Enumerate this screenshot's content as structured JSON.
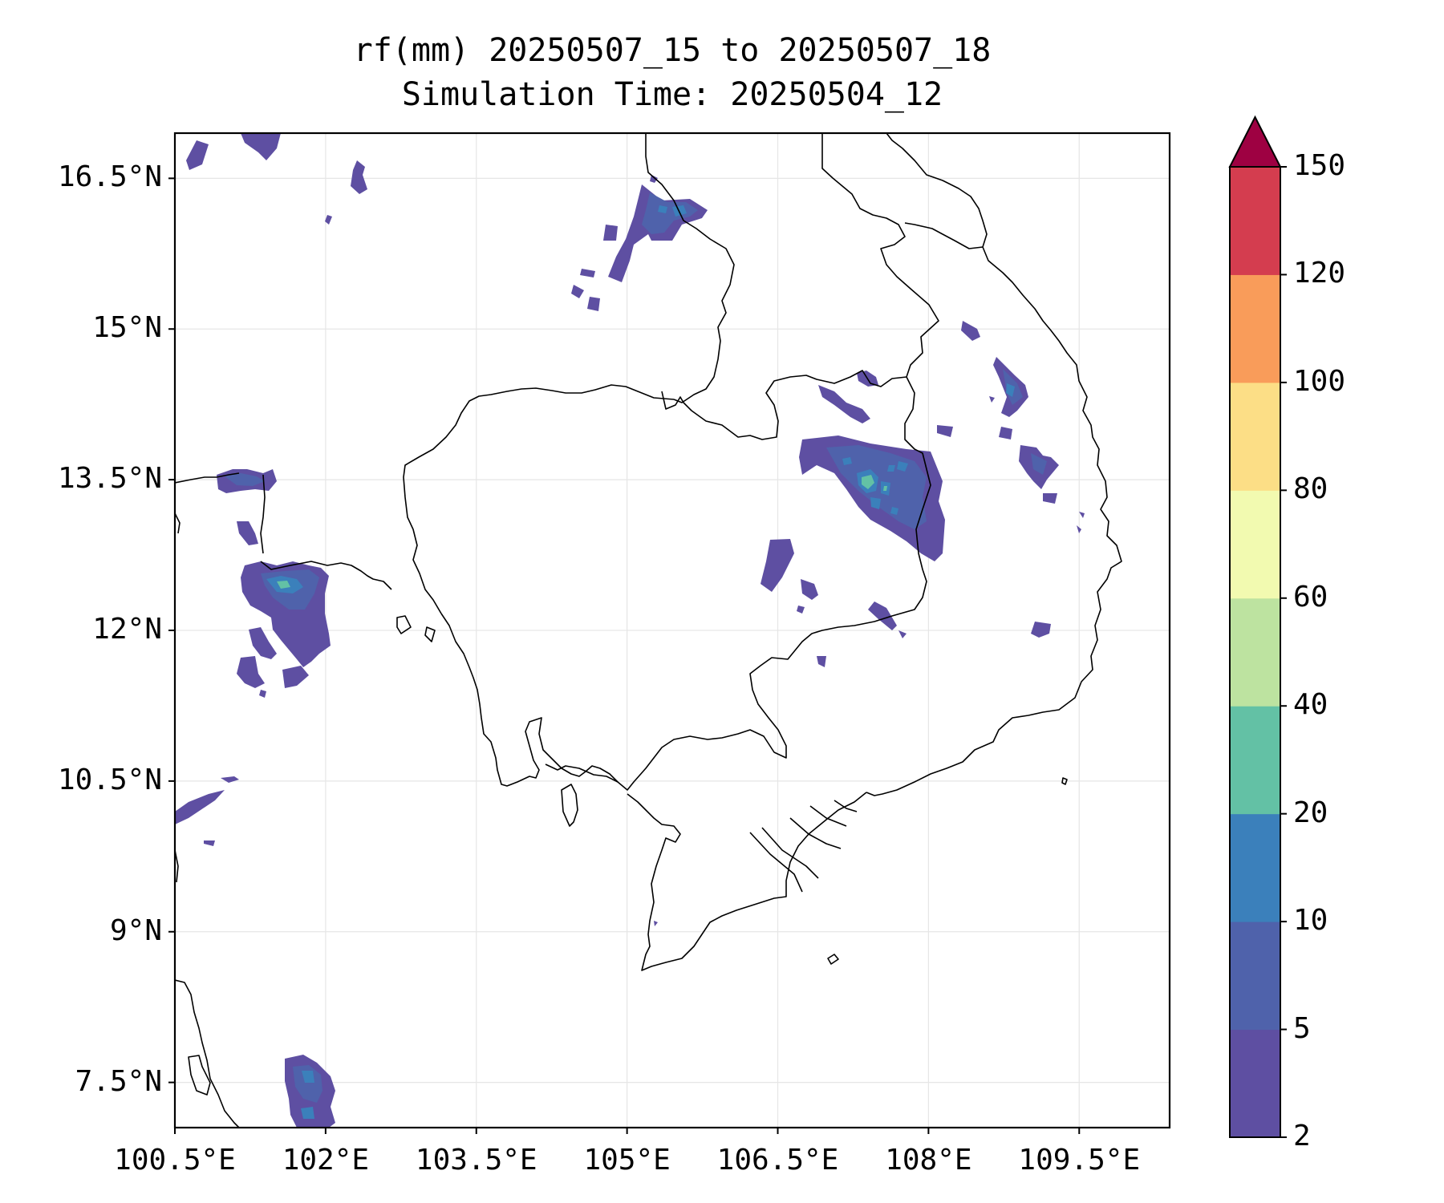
{
  "title": "rf(mm) 20250507_15 to 20250507_18",
  "subtitle": "Simulation Time: 20250504_12",
  "map": {
    "lon_range": [
      100.5,
      110.4
    ],
    "lat_range": [
      7.05,
      16.95
    ],
    "x_ticks": [
      {
        "value": 100.5,
        "label": "100.5°E"
      },
      {
        "value": 102,
        "label": "102°E"
      },
      {
        "value": 103.5,
        "label": "103.5°E"
      },
      {
        "value": 105,
        "label": "105°E"
      },
      {
        "value": 106.5,
        "label": "106.5°E"
      },
      {
        "value": 108,
        "label": "108°E"
      },
      {
        "value": 109.5,
        "label": "109.5°E"
      }
    ],
    "y_ticks": [
      {
        "value": 16.5,
        "label": "16.5°N"
      },
      {
        "value": 15,
        "label": "15°N"
      },
      {
        "value": 13.5,
        "label": "13.5°N"
      },
      {
        "value": 12,
        "label": "12°N"
      },
      {
        "value": 10.5,
        "label": "10.5°N"
      },
      {
        "value": 9,
        "label": "9°N"
      },
      {
        "value": 7.5,
        "label": "7.5°N"
      }
    ],
    "gridlines": true
  },
  "colorbar": {
    "extend": "max",
    "levels": [
      {
        "value": 2,
        "label": "2"
      },
      {
        "value": 5,
        "label": "5"
      },
      {
        "value": 10,
        "label": "10"
      },
      {
        "value": 20,
        "label": "20"
      },
      {
        "value": 40,
        "label": "40"
      },
      {
        "value": 60,
        "label": "60"
      },
      {
        "value": 80,
        "label": "80"
      },
      {
        "value": 100,
        "label": "100"
      },
      {
        "value": 120,
        "label": "120"
      },
      {
        "value": 150,
        "label": "150"
      }
    ],
    "colors": [
      "#5e4fa2",
      "#4f62ab",
      "#3b80bb",
      "#63c1a5",
      "#bde3a0",
      "#f2fab0",
      "#fcde86",
      "#f99c5a",
      "#d43d4f",
      "#9e0142"
    ]
  },
  "chart_data": {
    "type": "heatmap",
    "title": "rf(mm) 20250507_15 to 20250507_18",
    "subtitle": "Simulation Time: 20250504_12",
    "variable": "rf(mm)",
    "xlim": [
      100.5,
      110.4
    ],
    "ylim": [
      7.05,
      16.95
    ],
    "colorbar_levels": [
      2,
      5,
      10,
      20,
      40,
      60,
      80,
      100,
      120,
      150
    ],
    "colorbar_extend": "max",
    "rain_areas": [
      {
        "lon": 104.93,
        "lat": 16.05,
        "level": "2-5"
      },
      {
        "lon": 104.93,
        "lat": 16.15,
        "level": "5-10"
      },
      {
        "lon": 106.89,
        "lat": 13.55,
        "level": "5-10"
      },
      {
        "lon": 106.99,
        "lat": 13.45,
        "level": "10-20"
      },
      {
        "lon": 101.39,
        "lat": 12.45,
        "level": "5-10"
      },
      {
        "lon": 101.39,
        "lat": 12.4,
        "level": "10-20"
      },
      {
        "lon": 108.65,
        "lat": 14.1,
        "level": "5-10"
      },
      {
        "lon": 108.85,
        "lat": 13.55,
        "level": "5-10"
      },
      {
        "lon": 101.61,
        "lat": 7.4,
        "level": "5-10"
      }
    ]
  }
}
